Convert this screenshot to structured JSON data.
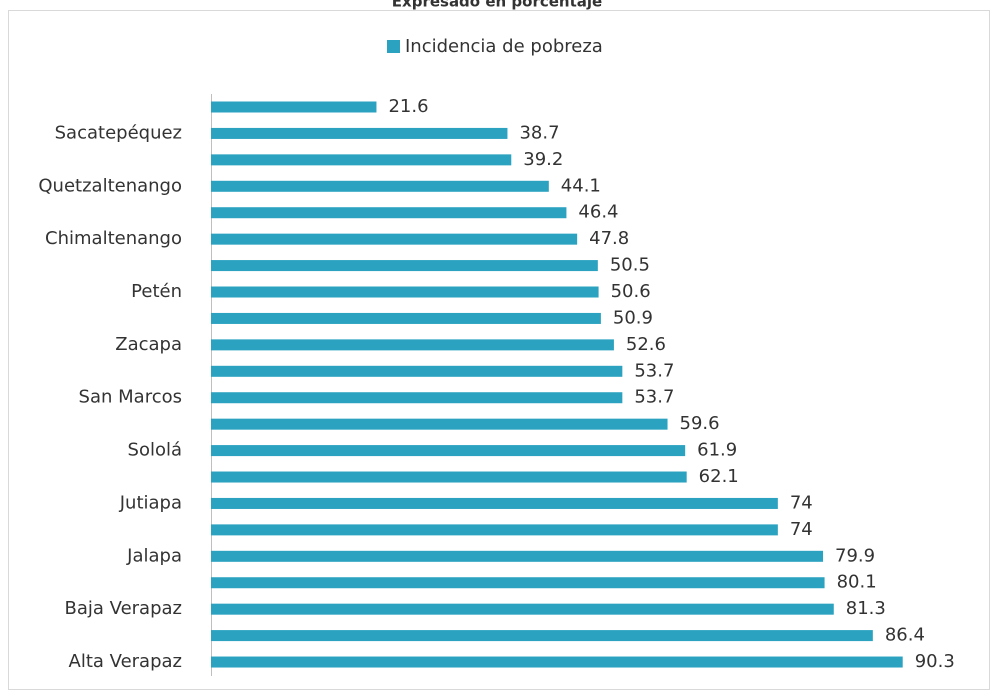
{
  "chart_data": {
    "type": "bar",
    "orientation": "horizontal",
    "title": "Expresado en porcentaje",
    "legend": "top",
    "categories": [
      null,
      "Sacatepéquez",
      null,
      "Quetzaltenango",
      null,
      "Chimaltenango",
      null,
      "Petén",
      null,
      "Zacapa",
      null,
      "San Marcos",
      null,
      "Sololá",
      null,
      "Jutiapa",
      null,
      "Jalapa",
      null,
      "Baja Verapaz",
      null,
      "Alta Verapaz"
    ],
    "series": [
      {
        "name": "Incidencia de pobreza",
        "color": "#2aa2c0",
        "values": [
          21.6,
          38.7,
          39.2,
          44.1,
          46.4,
          47.8,
          50.5,
          50.6,
          50.9,
          52.6,
          53.7,
          53.7,
          59.6,
          61.9,
          62.1,
          74,
          74,
          79.9,
          80.1,
          81.3,
          86.4,
          90.3
        ]
      }
    ],
    "xlim": [
      0,
      100
    ]
  }
}
